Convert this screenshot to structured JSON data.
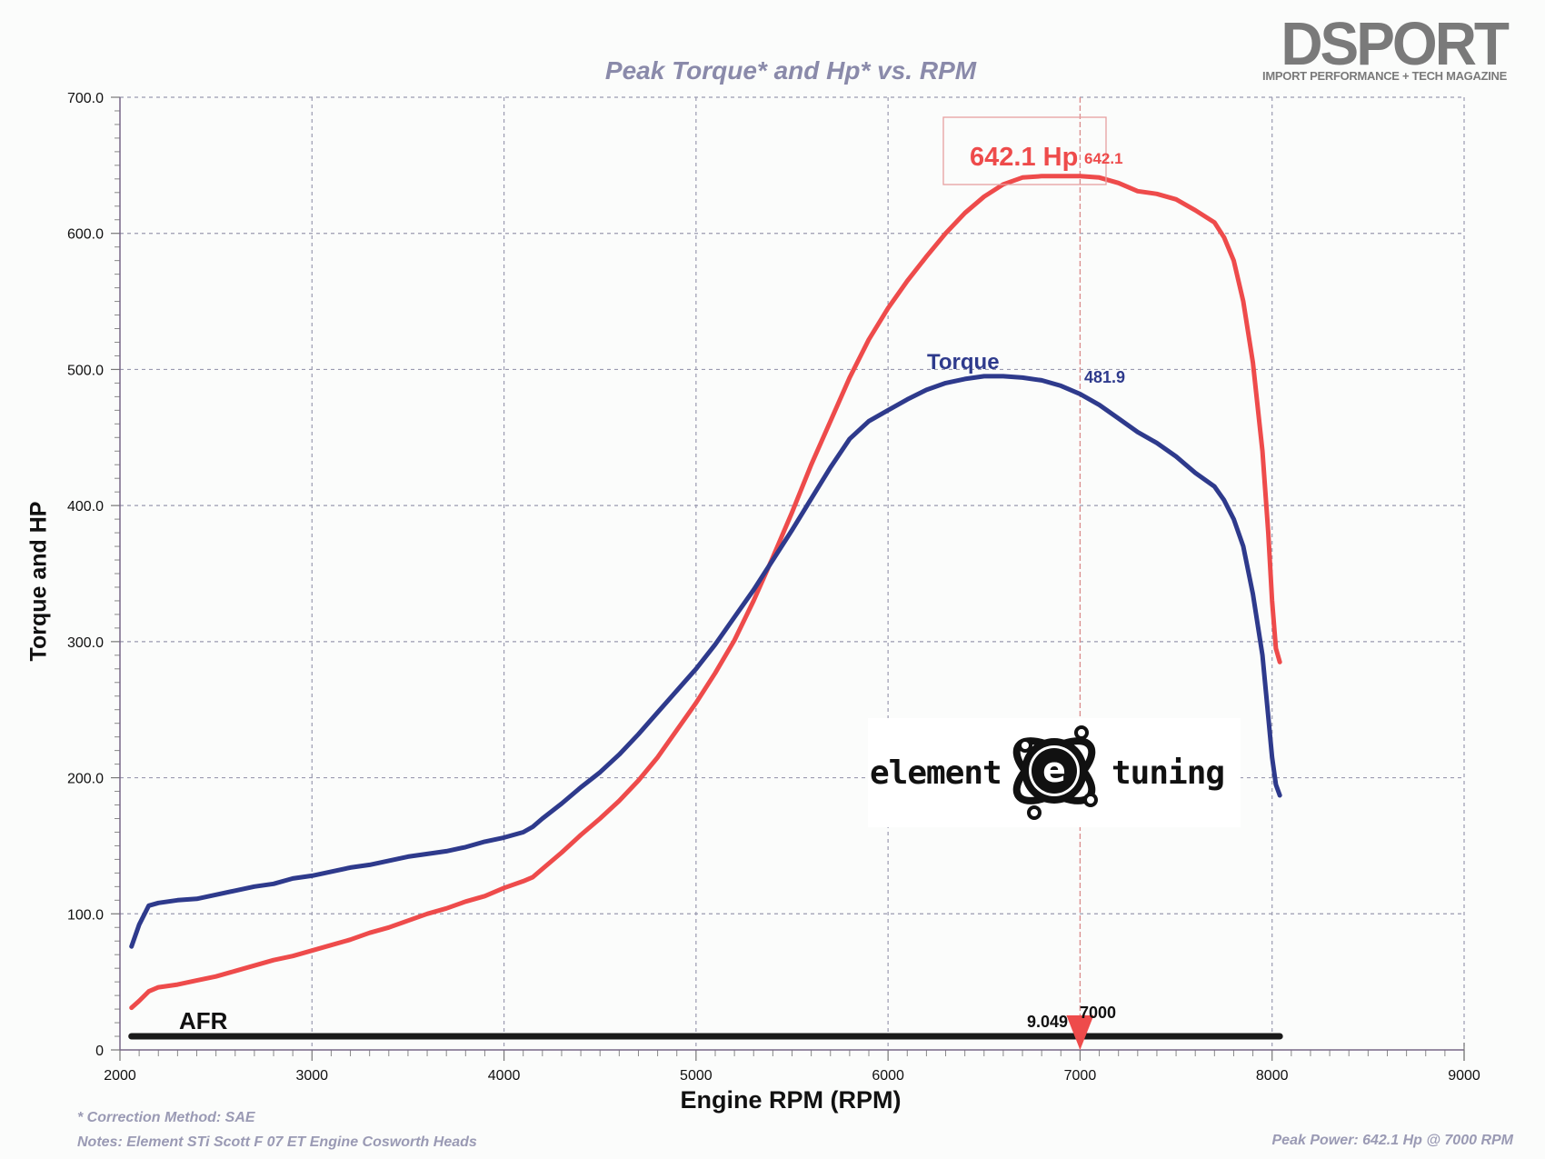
{
  "brand": {
    "name": "DSPORT",
    "tagline": "IMPORT PERFORMANCE + TECH MAGAZINE"
  },
  "sponsor_logo": {
    "left_text": "element",
    "right_text": "tuning",
    "emblem_letter": "e"
  },
  "footer": {
    "correction": "* Correction Method: SAE",
    "notes": "Notes: Element STi Scott F 07 ET Engine Cosworth Heads",
    "peak_power": "Peak Power: 642.1 Hp @ 7000 RPM"
  },
  "chart_data": {
    "type": "line",
    "title": "Peak Torque* and Hp* vs. RPM",
    "xlabel": "Engine RPM (RPM)",
    "ylabel": "Torque and HP",
    "xlim": [
      2000,
      9000
    ],
    "ylim": [
      0,
      700
    ],
    "x_ticks": [
      "2000",
      "3000",
      "4000",
      "5000",
      "6000",
      "7000",
      "8000",
      "9000"
    ],
    "y_ticks": [
      "0",
      "100.0",
      "200.0",
      "300.0",
      "400.0",
      "500.0",
      "600.0",
      "700.0"
    ],
    "grid": true,
    "colors": {
      "hp": "#ee4b4b",
      "torque": "#2e3a8c",
      "afr": "#1a1a1a",
      "cursor": "#d98a8a",
      "grid": "#9a9ab0"
    },
    "cursor": {
      "rpm": 7000,
      "rpm_label": "7000",
      "afr_label": "9.049"
    },
    "annotations": {
      "hp_box": "642.1 Hp",
      "hp_value": "642.1",
      "torque_label": "Torque",
      "torque_value": "481.9",
      "afr_label": "AFR"
    },
    "series": [
      {
        "name": "Hp",
        "x": [
          2060,
          2100,
          2150,
          2200,
          2300,
          2400,
          2500,
          2600,
          2700,
          2800,
          2900,
          3000,
          3100,
          3200,
          3300,
          3400,
          3500,
          3600,
          3700,
          3800,
          3900,
          4000,
          4100,
          4150,
          4200,
          4300,
          4400,
          4500,
          4600,
          4700,
          4800,
          4900,
          5000,
          5100,
          5200,
          5300,
          5400,
          5500,
          5600,
          5700,
          5800,
          5900,
          6000,
          6100,
          6200,
          6300,
          6400,
          6500,
          6600,
          6700,
          6800,
          6900,
          7000,
          7100,
          7200,
          7300,
          7400,
          7500,
          7600,
          7700,
          7750,
          7800,
          7850,
          7900,
          7950,
          7980,
          8000,
          8020,
          8040
        ],
        "values": [
          31,
          36,
          43,
          46,
          48,
          51,
          54,
          58,
          62,
          66,
          69,
          73,
          77,
          81,
          86,
          90,
          95,
          100,
          104,
          109,
          113,
          119,
          124,
          127,
          133,
          145,
          158,
          170,
          183,
          198,
          215,
          235,
          255,
          277,
          301,
          330,
          362,
          395,
          430,
          462,
          494,
          522,
          545,
          565,
          583,
          600,
          615,
          627,
          636,
          641,
          642,
          642,
          642,
          641,
          637,
          631,
          629,
          625,
          617,
          608,
          597,
          580,
          550,
          505,
          440,
          380,
          330,
          295,
          285
        ]
      },
      {
        "name": "Torque",
        "x": [
          2060,
          2100,
          2150,
          2200,
          2300,
          2400,
          2500,
          2600,
          2700,
          2800,
          2900,
          3000,
          3100,
          3200,
          3300,
          3400,
          3500,
          3600,
          3700,
          3800,
          3900,
          4000,
          4100,
          4150,
          4200,
          4300,
          4400,
          4500,
          4600,
          4700,
          4800,
          4900,
          5000,
          5100,
          5200,
          5300,
          5400,
          5500,
          5600,
          5700,
          5800,
          5900,
          6000,
          6100,
          6200,
          6300,
          6400,
          6500,
          6600,
          6700,
          6800,
          6900,
          7000,
          7100,
          7200,
          7300,
          7400,
          7500,
          7600,
          7700,
          7750,
          7800,
          7850,
          7900,
          7950,
          7980,
          8000,
          8020,
          8040
        ],
        "values": [
          76,
          92,
          106,
          108,
          110,
          111,
          114,
          117,
          120,
          122,
          126,
          128,
          131,
          134,
          136,
          139,
          142,
          144,
          146,
          149,
          153,
          156,
          160,
          164,
          170,
          181,
          193,
          204,
          217,
          232,
          248,
          264,
          280,
          298,
          318,
          338,
          360,
          382,
          405,
          428,
          449,
          462,
          470,
          478,
          485,
          490,
          493,
          495,
          495,
          494,
          492,
          488,
          482,
          474,
          464,
          454,
          446,
          436,
          424,
          414,
          404,
          390,
          370,
          335,
          290,
          245,
          215,
          195,
          187
        ]
      },
      {
        "name": "AFR",
        "x": [
          2060,
          8040
        ],
        "values": [
          9.05,
          9.05
        ]
      }
    ]
  }
}
